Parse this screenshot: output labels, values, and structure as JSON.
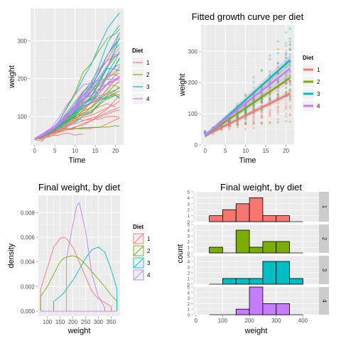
{
  "legend_title": "Diet",
  "diets": [
    "1",
    "2",
    "3",
    "4"
  ],
  "diet_colors": [
    "#F8766D",
    "#7CAE00",
    "#00BFC4",
    "#C77CFF"
  ],
  "panel_background": "#EBEBEB",
  "chart_data": [
    {
      "type": "line",
      "title": "",
      "xlabel": "Time",
      "ylabel": "weight",
      "xlim": [
        -1,
        22
      ],
      "ylim": [
        25,
        385
      ],
      "x_ticks": [
        0,
        5,
        10,
        15,
        20
      ],
      "y_ticks": [
        100,
        200,
        300
      ],
      "grid": true,
      "legend": "right",
      "x": [
        0,
        2,
        4,
        6,
        8,
        10,
        12,
        14,
        16,
        18,
        20,
        21
      ],
      "series": [
        {
          "name": "1",
          "lines": [
            [
              42,
              51,
              59,
              64,
              76,
              93,
              106,
              125,
              149,
              171,
              199,
              205
            ],
            [
              40,
              49,
              58,
              72,
              84,
              103,
              122,
              138,
              162,
              187,
              209,
              215
            ],
            [
              43,
              39,
              55,
              67,
              84,
              99,
              115,
              138,
              163,
              187,
              198,
              202
            ],
            [
              42,
              49,
              56,
              67,
              74,
              87,
              102,
              108,
              136,
              154,
              160,
              157
            ],
            [
              41,
              42,
              48,
              60,
              79,
              106,
              141,
              164,
              197,
              199,
              220,
              223
            ],
            [
              41,
              49,
              59,
              74,
              97,
              124,
              141,
              148,
              155,
              160,
              160,
              157
            ],
            [
              41,
              49,
              57,
              71,
              89,
              112,
              146,
              174,
              218,
              250,
              288,
              305
            ],
            [
              42,
              50,
              61,
              71,
              84,
              93,
              110,
              116,
              126,
              134,
              125,
              null
            ],
            [
              42,
              51,
              59,
              68,
              85,
              96,
              90,
              92,
              93,
              100,
              100,
              98
            ],
            [
              41,
              44,
              52,
              63,
              74,
              81,
              89,
              96,
              101,
              112,
              120,
              124
            ],
            [
              43,
              51,
              63,
              84,
              112,
              139,
              168,
              177,
              182,
              184,
              181,
              175
            ],
            [
              41,
              49,
              56,
              62,
              72,
              88,
              119,
              135,
              162,
              185,
              195,
              205
            ],
            [
              41,
              48,
              53,
              60,
              65,
              67,
              71,
              70,
              71,
              81,
              91,
              96
            ],
            [
              41,
              49,
              62,
              79,
              101,
              128,
              164,
              192,
              227,
              248,
              259,
              266
            ],
            [
              41,
              49,
              56,
              64,
              68,
              68,
              67,
              68,
              null,
              null,
              null,
              null
            ],
            [
              41,
              45,
              49,
              51,
              57,
              51,
              54,
              null,
              null,
              null,
              null,
              null
            ],
            [
              42,
              51,
              61,
              72,
              83,
              89,
              98,
              103,
              113,
              123,
              133,
              142
            ],
            [
              39,
              35,
              null,
              null,
              null,
              null,
              null,
              null,
              null,
              null,
              null,
              null
            ],
            [
              43,
              48,
              55,
              62,
              65,
              71,
              82,
              88,
              106,
              120,
              144,
              157
            ],
            [
              41,
              47,
              54,
              58,
              65,
              73,
              77,
              89,
              98,
              107,
              115,
              117
            ]
          ]
        },
        {
          "name": "2",
          "lines": [
            [
              40,
              50,
              62,
              86,
              125,
              163,
              217,
              240,
              275,
              307,
              318,
              331
            ],
            [
              41,
              55,
              64,
              77,
              90,
              95,
              108,
              111,
              131,
              148,
              164,
              167
            ],
            [
              43,
              52,
              61,
              73,
              90,
              103,
              127,
              135,
              145,
              163,
              170,
              175
            ],
            [
              42,
              52,
              58,
              74,
              66,
              68,
              70,
              71,
              72,
              72,
              76,
              74
            ],
            [
              40,
              49,
              62,
              78,
              102,
              124,
              146,
              164,
              197,
              231,
              259,
              265
            ],
            [
              42,
              48,
              57,
              74,
              93,
              114,
              136,
              147,
              169,
              205,
              236,
              251
            ],
            [
              39,
              46,
              58,
              73,
              87,
              100,
              115,
              123,
              144,
              163,
              185,
              192
            ],
            [
              39,
              46,
              58,
              73,
              92,
              114,
              145,
              156,
              184,
              207,
              212,
              233
            ],
            [
              39,
              48,
              59,
              74,
              87,
              106,
              134,
              150,
              187,
              230,
              279,
              309
            ],
            [
              42,
              48,
              59,
              72,
              85,
              98,
              115,
              122,
              143,
              151,
              157,
              150
            ]
          ]
        },
        {
          "name": "3",
          "lines": [
            [
              42,
              53,
              62,
              73,
              85,
              102,
              123,
              138,
              170,
              204,
              235,
              256
            ],
            [
              41,
              49,
              65,
              82,
              107,
              129,
              159,
              179,
              221,
              263,
              291,
              305
            ],
            [
              39,
              50,
              63,
              77,
              96,
              111,
              137,
              144,
              151,
              146,
              156,
              147
            ],
            [
              41,
              49,
              63,
              85,
              107,
              134,
              164,
              186,
              235,
              294,
              327,
              341
            ],
            [
              41,
              53,
              64,
              87,
              123,
              158,
              201,
              238,
              287,
              332,
              361,
              373
            ],
            [
              39,
              48,
              61,
              76,
              98,
              116,
              145,
              166,
              198,
              227,
              225,
              220
            ],
            [
              41,
              48,
              56,
              68,
              80,
              83,
              103,
              112,
              135,
              157,
              169,
              178
            ],
            [
              41,
              49,
              61,
              74,
              98,
              109,
              128,
              154,
              192,
              232,
              280,
              290
            ],
            [
              42,
              50,
              61,
              78,
              89,
              109,
              130,
              146,
              170,
              214,
              250,
              272
            ],
            [
              41,
              55,
              66,
              79,
              101,
              120,
              154,
              182,
              215,
              262,
              295,
              321
            ]
          ]
        },
        {
          "name": "4",
          "lines": [
            [
              42,
              51,
              66,
              85,
              103,
              124,
              155,
              153,
              175,
              184,
              199,
              204
            ],
            [
              42,
              49,
              63,
              84,
              103,
              126,
              160,
              174,
              204,
              234,
              269,
              281
            ],
            [
              42,
              55,
              69,
              96,
              131,
              157,
              184,
              188,
              197,
              198,
              199,
              200
            ],
            [
              42,
              51,
              65,
              86,
              103,
              118,
              127,
              138,
              145,
              146,
              null,
              null
            ],
            [
              41,
              50,
              61,
              78,
              98,
              117,
              135,
              141,
              147,
              174,
              197,
              196
            ],
            [
              40,
              52,
              62,
              82,
              101,
              120,
              144,
              156,
              173,
              210,
              231,
              238
            ],
            [
              41,
              53,
              66,
              79,
              100,
              123,
              148,
              157,
              168,
              185,
              210,
              205
            ],
            [
              39,
              50,
              62,
              80,
              104,
              125,
              154,
              170,
              222,
              261,
              303,
              322
            ],
            [
              40,
              53,
              64,
              85,
              108,
              128,
              152,
              166,
              184,
              203,
              233,
              237
            ],
            [
              41,
              54,
              67,
              84,
              105,
              122,
              155,
              175,
              205,
              234,
              264,
              264
            ]
          ]
        }
      ]
    },
    {
      "type": "scatter",
      "title": "Fitted growth curve per diet",
      "xlabel": "Time",
      "ylabel": "weight",
      "xlim": [
        -1,
        22
      ],
      "ylim": [
        0,
        385
      ],
      "x_ticks": [
        0,
        5,
        10,
        15,
        20
      ],
      "y_ticks": [
        0,
        100,
        200,
        300
      ],
      "grid": true,
      "legend": "right",
      "points_from": "first chart lines (all measurements, alpha 0.3)",
      "fitted_lines": [
        {
          "name": "1",
          "x": [
            0,
            21
          ],
          "y": [
            30,
            165
          ]
        },
        {
          "name": "2",
          "x": [
            0,
            21
          ],
          "y": [
            30,
            215
          ]
        },
        {
          "name": "3",
          "x": [
            0,
            21
          ],
          "y": [
            28,
            272
          ]
        },
        {
          "name": "4",
          "x": [
            0,
            21
          ],
          "y": [
            31,
            245
          ]
        }
      ]
    },
    {
      "type": "area",
      "title": "Final weight, by diet",
      "xlabel": "weight",
      "ylabel": "density",
      "xlim": [
        65,
        385
      ],
      "ylim": [
        -0.0004,
        0.0094
      ],
      "x_ticks": [
        100,
        150,
        200,
        250,
        300,
        350
      ],
      "y_ticks": [
        0.0,
        0.002,
        0.004,
        0.006,
        0.008
      ],
      "y_tick_labels": [
        "0.000",
        "0.002",
        "0.004",
        "0.006",
        "0.008"
      ],
      "grid": true,
      "legend": "right",
      "x": [
        74,
        100,
        125,
        150,
        165,
        175,
        200,
        215,
        225,
        250,
        275,
        300,
        325,
        350,
        373
      ],
      "series": [
        {
          "name": "1",
          "values": [
            0.0018,
            0.0035,
            0.0052,
            0.0059,
            0.006,
            0.0059,
            0.0052,
            0.0045,
            0.004,
            0.0028,
            0.0016,
            0.001,
            0.0007,
            0.0004,
            null
          ]
        },
        {
          "name": "2",
          "values": [
            0.0012,
            0.002,
            0.003,
            0.004,
            0.0043,
            0.0044,
            0.0045,
            0.0044,
            0.0043,
            0.0038,
            0.0032,
            0.0026,
            0.002,
            0.0013,
            0.0008
          ]
        },
        {
          "name": "3",
          "values": [
            null,
            null,
            0.0008,
            0.0012,
            0.0015,
            0.0018,
            0.0025,
            0.003,
            0.0034,
            0.0043,
            0.005,
            0.0052,
            0.0048,
            0.0034,
            0.0018
          ]
        },
        {
          "name": "4",
          "values": [
            null,
            null,
            null,
            null,
            null,
            0.0043,
            0.007,
            0.0085,
            0.0088,
            0.0065,
            0.003,
            0.0012,
            0.0003,
            null,
            null
          ]
        }
      ]
    },
    {
      "type": "bar",
      "title": "Final weight, by diet",
      "xlabel": "weight",
      "ylabel": "count",
      "xlim": [
        -10,
        460
      ],
      "ylim": [
        0,
        5
      ],
      "x_ticks": [
        0,
        100,
        200,
        300,
        400
      ],
      "y_ticks": [
        0,
        1,
        2,
        3,
        4,
        5
      ],
      "bin_edges": [
        50,
        100,
        150,
        200,
        250,
        300,
        350,
        400
      ],
      "facets": [
        {
          "label": "1",
          "counts": [
            1,
            2,
            3,
            4,
            1,
            1,
            0
          ]
        },
        {
          "label": "2",
          "counts": [
            1,
            0,
            4,
            1,
            2,
            2,
            0
          ]
        },
        {
          "label": "3",
          "counts": [
            0,
            1,
            1,
            1,
            4,
            4,
            1
          ]
        },
        {
          "label": "4",
          "counts": [
            0,
            0,
            1,
            5,
            2,
            2,
            0
          ]
        }
      ]
    }
  ]
}
